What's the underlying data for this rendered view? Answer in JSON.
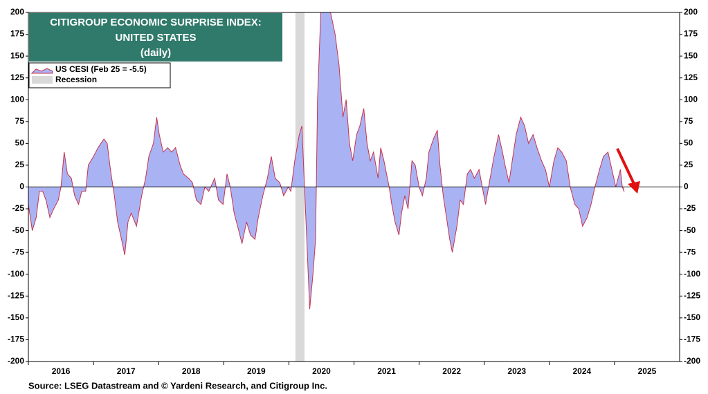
{
  "chart_data": {
    "type": "area",
    "title": [
      "CITIGROUP ECONOMIC SURPRISE INDEX:",
      "UNITED STATES",
      "(daily)"
    ],
    "source": "Source: LSEG Datastream and © Yardeni Research, and Citigroup Inc.",
    "series": [
      {
        "name": "US CESI (Feb 25 = -5.5)",
        "color": "#c8324a",
        "fill": "#a9b3f4",
        "x": [
          2016.0,
          2016.06,
          2016.12,
          2016.17,
          2016.22,
          2016.27,
          2016.33,
          2016.39,
          2016.46,
          2016.5,
          2016.55,
          2016.6,
          2016.66,
          2016.71,
          2016.77,
          2016.82,
          2016.88,
          2016.92,
          2017.0,
          2017.07,
          2017.16,
          2017.21,
          2017.26,
          2017.32,
          2017.37,
          2017.43,
          2017.48,
          2017.53,
          2017.58,
          2017.66,
          2017.74,
          2017.8,
          2017.85,
          2017.92,
          2017.97,
          2018.01,
          2018.07,
          2018.14,
          2018.2,
          2018.26,
          2018.33,
          2018.38,
          2018.46,
          2018.52,
          2018.58,
          2018.65,
          2018.71,
          2018.77,
          2018.86,
          2018.92,
          2018.99,
          2019.05,
          2019.1,
          2019.16,
          2019.23,
          2019.28,
          2019.35,
          2019.41,
          2019.48,
          2019.53,
          2019.6,
          2019.67,
          2019.73,
          2019.79,
          2019.86,
          2019.92,
          2019.99,
          2020.03,
          2020.09,
          2020.16,
          2020.2,
          2020.24,
          2020.28,
          2020.32,
          2020.37,
          2020.41,
          2020.44,
          2020.49,
          2020.56,
          2020.64,
          2020.71,
          2020.77,
          2020.83,
          2020.88,
          2020.93,
          2020.98,
          2021.04,
          2021.09,
          2021.15,
          2021.2,
          2021.25,
          2021.3,
          2021.37,
          2021.41,
          2021.46,
          2021.54,
          2021.58,
          2021.63,
          2021.69,
          2021.73,
          2021.78,
          2021.83,
          2021.89,
          2021.94,
          2022.0,
          2022.05,
          2022.11,
          2022.15,
          2022.22,
          2022.28,
          2022.32,
          2022.37,
          2022.42,
          2022.47,
          2022.51,
          2022.58,
          2022.63,
          2022.68,
          2022.74,
          2022.79,
          2022.85,
          2022.92,
          2022.97,
          2023.02,
          2023.09,
          2023.15,
          2023.22,
          2023.28,
          2023.32,
          2023.38,
          2023.43,
          2023.49,
          2023.56,
          2023.62,
          2023.68,
          2023.75,
          2023.81,
          2023.88,
          2023.94,
          2024.0,
          2024.07,
          2024.13,
          2024.19,
          2024.26,
          2024.32,
          2024.39,
          2024.45,
          2024.51,
          2024.58,
          2024.64,
          2024.7,
          2024.77,
          2024.83,
          2024.9,
          2024.96,
          2025.02,
          2025.09,
          2025.12,
          2025.15
        ],
        "values": [
          -20,
          -50,
          -35,
          -5,
          -5,
          -15,
          -35,
          -25,
          -15,
          0,
          40,
          15,
          10,
          -10,
          -20,
          -5,
          -5,
          25,
          35,
          45,
          55,
          50,
          20,
          -10,
          -40,
          -60,
          -78,
          -40,
          -30,
          -45,
          -10,
          10,
          35,
          50,
          80,
          60,
          40,
          45,
          40,
          45,
          25,
          15,
          10,
          5,
          -15,
          -20,
          0,
          -5,
          10,
          -15,
          -20,
          15,
          0,
          -30,
          -50,
          -65,
          -40,
          -55,
          -60,
          -35,
          -10,
          10,
          35,
          10,
          5,
          -10,
          0,
          -5,
          30,
          60,
          70,
          0,
          -70,
          -140,
          -100,
          -60,
          100,
          200,
          200,
          200,
          175,
          140,
          80,
          100,
          50,
          30,
          60,
          70,
          90,
          50,
          30,
          40,
          10,
          45,
          30,
          0,
          -20,
          -40,
          -55,
          -30,
          -10,
          -25,
          30,
          25,
          0,
          -10,
          10,
          40,
          55,
          65,
          25,
          -10,
          -35,
          -60,
          -75,
          -45,
          -15,
          -20,
          15,
          20,
          10,
          20,
          0,
          -20,
          10,
          35,
          60,
          40,
          25,
          5,
          30,
          60,
          80,
          70,
          50,
          60,
          45,
          30,
          20,
          0,
          30,
          45,
          40,
          30,
          0,
          -20,
          -25,
          -45,
          -35,
          -20,
          0,
          20,
          35,
          40,
          20,
          0,
          20,
          0,
          -5.5
        ]
      }
    ],
    "recession": {
      "name": "Recession",
      "color": "#d9d9d9",
      "range": [
        2020.1,
        2020.24
      ]
    },
    "xlim": [
      2016,
      2026
    ],
    "xticks": [
      2016,
      2017,
      2018,
      2019,
      2020,
      2021,
      2022,
      2023,
      2024,
      2025
    ],
    "ylim": [
      -200,
      200
    ],
    "yticks": [
      -200,
      -175,
      -150,
      -125,
      -100,
      -75,
      -50,
      -25,
      0,
      25,
      50,
      75,
      100,
      125,
      150,
      175,
      200
    ],
    "y2lim": [
      -200,
      200
    ],
    "y2ticks": [
      -200,
      -175,
      -150,
      -125,
      -100,
      -75,
      -50,
      -25,
      0,
      25,
      50,
      75,
      100,
      125,
      150,
      175,
      200
    ]
  }
}
